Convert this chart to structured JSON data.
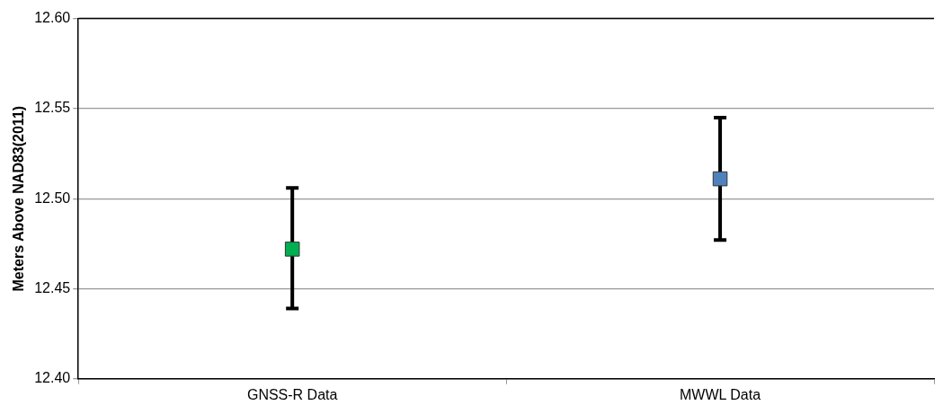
{
  "chart_data": {
    "type": "scatter",
    "ylabel": "Meters Above NAD83(2011)",
    "categories": [
      "GNSS-R Data",
      "MWWL Data"
    ],
    "values": [
      12.472,
      12.511
    ],
    "colors": [
      "#00b050",
      "#4f81bd"
    ],
    "errors": [
      [
        12.439,
        12.506
      ],
      [
        12.477,
        12.545
      ]
    ],
    "ylim": [
      12.4,
      12.6
    ],
    "yticks": [
      {
        "value": 12.4,
        "label": "12.40"
      },
      {
        "value": 12.45,
        "label": "12.45"
      },
      {
        "value": 12.5,
        "label": "12.50"
      },
      {
        "value": 12.55,
        "label": "12.55"
      },
      {
        "value": 12.6,
        "label": "12.60"
      }
    ],
    "grid": "y",
    "marker": "square",
    "legend": false
  }
}
